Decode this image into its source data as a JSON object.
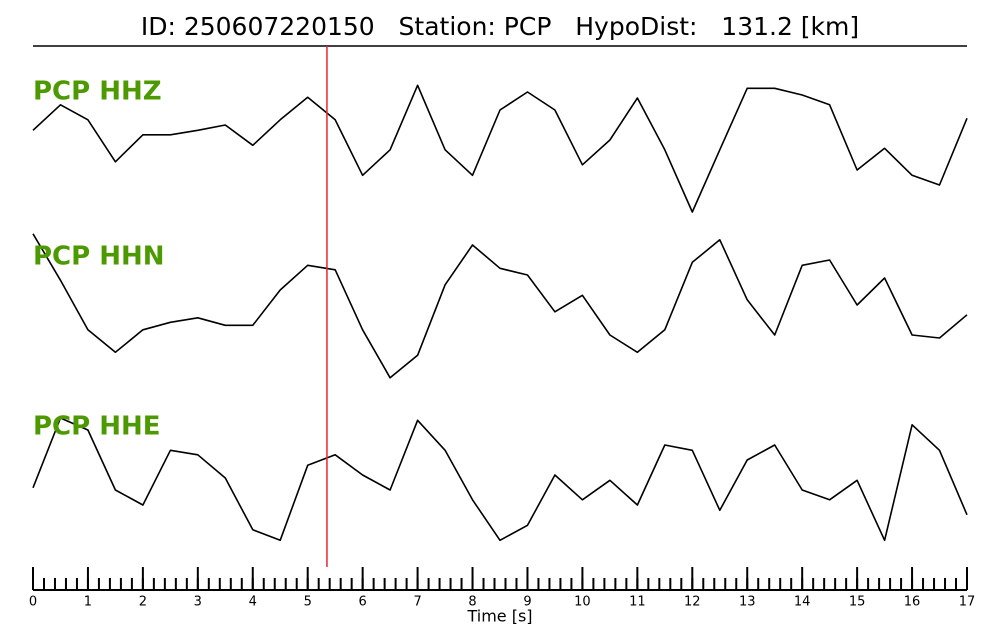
{
  "chart_data": {
    "type": "line",
    "title": "ID: 250607220150   Station: PCP   HypoDist:   131.2 [km]",
    "xlabel": "Time [s]",
    "xlim": [
      0,
      17
    ],
    "xticks": [
      0,
      1,
      2,
      3,
      4,
      5,
      6,
      7,
      8,
      9,
      10,
      11,
      12,
      13,
      14,
      15,
      16,
      17
    ],
    "xminor_step": 0.2,
    "ylim": [
      -1,
      1
    ],
    "pick_time": 5.35,
    "pick_color": "#e8262a",
    "label_color": "#4c9a00",
    "x": [
      0,
      0.5,
      1,
      1.5,
      2,
      2.5,
      3,
      3.5,
      4,
      4.5,
      5,
      5.5,
      6,
      6.5,
      7,
      7.5,
      8,
      8.5,
      9,
      9.5,
      10,
      10.5,
      11,
      11.5,
      12,
      12.5,
      13,
      13.5,
      14,
      14.5,
      15,
      15.5,
      16,
      16.5,
      17
    ],
    "series": [
      {
        "name": "PCP HHZ",
        "color": "#000000",
        "values": [
          0.13,
          0.47,
          0.27,
          -0.29,
          0.07,
          0.07,
          0.13,
          0.2,
          -0.07,
          0.27,
          0.57,
          0.27,
          -0.47,
          -0.13,
          0.73,
          -0.13,
          -0.47,
          0.4,
          0.64,
          0.4,
          -0.33,
          0,
          0.56,
          -0.13,
          -0.96,
          -0.13,
          0.69,
          0.69,
          0.6,
          0.47,
          -0.4,
          -0.11,
          -0.47,
          -0.6,
          0.29
        ]
      },
      {
        "name": "PCP HHN",
        "color": "#000000",
        "values": [
          0.95,
          0.33,
          -0.33,
          -0.63,
          -0.33,
          -0.23,
          -0.17,
          -0.27,
          -0.27,
          0.2,
          0.53,
          0.47,
          -0.33,
          -0.97,
          -0.67,
          0.27,
          0.8,
          0.49,
          0.4,
          -0.09,
          0.13,
          -0.4,
          -0.63,
          -0.33,
          0.57,
          0.87,
          0.07,
          -0.4,
          0.53,
          0.6,
          0,
          0.36,
          -0.4,
          -0.44,
          -0.13
        ]
      },
      {
        "name": "PCP HHE",
        "color": "#000000",
        "values": [
          -0.17,
          0.76,
          0.6,
          -0.2,
          -0.4,
          0.33,
          0.27,
          -0.04,
          -0.73,
          -0.87,
          0.13,
          0.27,
          0,
          -0.2,
          0.73,
          0.33,
          -0.33,
          -0.87,
          -0.67,
          0,
          -0.33,
          -0.07,
          -0.4,
          0.4,
          0.33,
          -0.47,
          0.2,
          0.4,
          -0.2,
          -0.33,
          -0.07,
          -0.87,
          0.67,
          0.33,
          -0.53
        ]
      }
    ]
  }
}
